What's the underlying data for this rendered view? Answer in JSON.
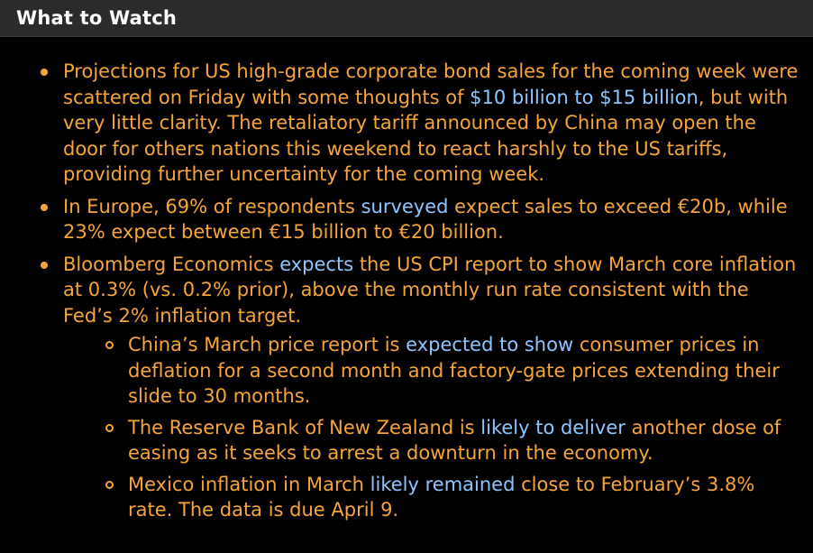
{
  "header": {
    "title": "What to Watch"
  },
  "bullets": [
    {
      "parts": [
        {
          "text": "Projections for US high-grade corporate bond sales for the coming week were scattered on Friday with some thoughts of "
        },
        {
          "text": "$10 billion to $15 billion",
          "link": true
        },
        {
          "text": ", but with very little clarity. The retaliatory tariff announced by China may open the door for others nations this weekend to react harshly to the US tariffs, providing further uncertainty for the coming week."
        }
      ]
    },
    {
      "parts": [
        {
          "text": "In Europe, 69% of respondents "
        },
        {
          "text": "surveyed",
          "link": true
        },
        {
          "text": " expect sales to exceed €20b, while 23% expect between €15 billion to €20 billion."
        }
      ]
    },
    {
      "parts": [
        {
          "text": "Bloomberg Economics "
        },
        {
          "text": "expects",
          "link": true
        },
        {
          "text": " the US CPI report to show March core inflation at 0.3% (vs. 0.2% prior), above the monthly run rate consistent with the Fed’s 2% inflation target."
        }
      ],
      "sub": [
        {
          "parts": [
            {
              "text": "China’s March price report is "
            },
            {
              "text": "expected to show",
              "link": true
            },
            {
              "text": " consumer prices in deflation for a second month and factory-gate prices extending their slide to 30 months."
            }
          ]
        },
        {
          "parts": [
            {
              "text": "The Reserve Bank of New Zealand is "
            },
            {
              "text": "likely to deliver",
              "link": true
            },
            {
              "text": " another dose of easing as it seeks to arrest a downturn in the economy."
            }
          ]
        },
        {
          "parts": [
            {
              "text": "Mexico inflation in March "
            },
            {
              "text": "likely remained",
              "link": true
            },
            {
              "text": " close to February’s 3.8% rate. The data is due April 9."
            }
          ]
        }
      ]
    }
  ]
}
